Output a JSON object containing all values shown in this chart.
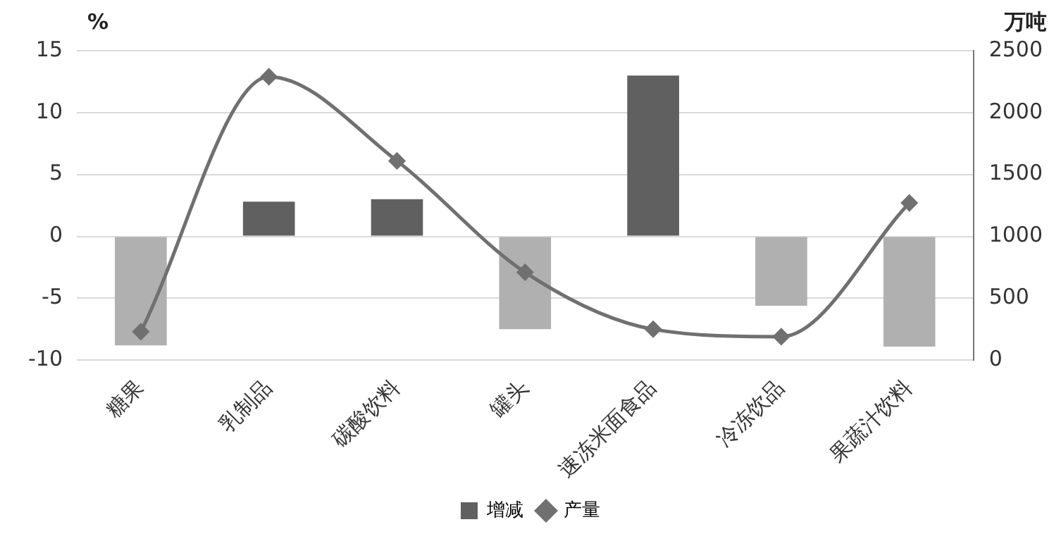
{
  "chart_data": {
    "type": "bar",
    "ylabel": "%",
    "y2label": "万吨",
    "categories": [
      "糖果",
      "乳制品",
      "碳酸饮料",
      "罐头",
      "速冻米面食品",
      "冷冻饮品",
      "果蔬汁饮料"
    ],
    "series": [
      {
        "name": "增减",
        "color": "#606060",
        "colors": [
          "#b0b0b0",
          "#606060",
          "#606060",
          "#b0b0b0",
          "#606060",
          "#b0b0b0",
          "#b0b0b0"
        ],
        "values": [
          -8.8,
          2.8,
          3.0,
          -7.5,
          13.0,
          -5.6,
          -8.9
        ]
      },
      {
        "name": "产量",
        "type": "line",
        "axis": "y2",
        "color": "#707070",
        "marker": "diamond",
        "values": [
          230,
          2290,
          1610,
          710,
          250,
          190,
          1270
        ]
      }
    ],
    "ylim": [
      -10,
      15
    ],
    "yticks": [
      -10,
      -5,
      0,
      5,
      10,
      15
    ],
    "y2lim": [
      0,
      2500
    ],
    "y2ticks": [
      0,
      500,
      1000,
      1500,
      2000,
      2500
    ],
    "grid": "y",
    "legend": "bottom"
  }
}
